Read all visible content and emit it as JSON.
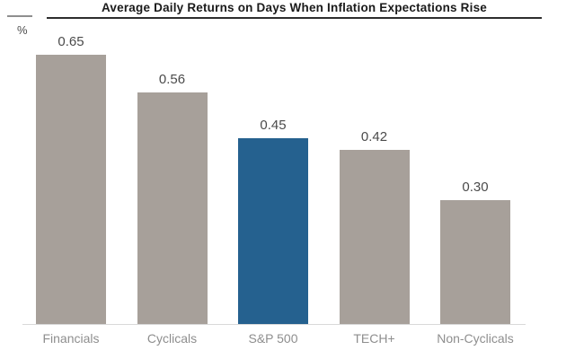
{
  "chart_data": {
    "type": "bar",
    "title": "Average Daily Returns on Days When Inflation Expectations Rise",
    "ylabel": "%",
    "xlabel": "",
    "categories": [
      "Financials",
      "Cyclicals",
      "S&P 500",
      "TECH+",
      "Non-Cyclicals"
    ],
    "values": [
      0.65,
      0.56,
      0.45,
      0.42,
      0.3
    ],
    "value_labels": [
      "0.65",
      "0.56",
      "0.45",
      "0.42",
      "0.30"
    ],
    "highlight_index": 2,
    "ylim": [
      0,
      0.78
    ],
    "grid": false,
    "legend": "none",
    "colors": {
      "bar_default": "#a7a09a",
      "bar_highlight": "#25618f",
      "title_text": "#1a1a1a",
      "title_rule": "#2e2e2e",
      "value_text": "#4b4b4b",
      "category_text": "#8e8e8e",
      "axis_line": "#d9d9d9",
      "tick_line": "#8f8f8f",
      "background": "#ffffff"
    }
  }
}
